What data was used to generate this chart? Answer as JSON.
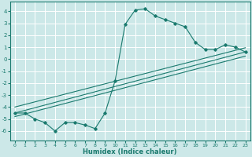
{
  "title": "",
  "xlabel": "Humidex (Indice chaleur)",
  "bg_color": "#cce8e8",
  "grid_color": "#ffffff",
  "line_color": "#1a7a6e",
  "xlim": [
    -0.5,
    23.5
  ],
  "ylim": [
    -6.8,
    4.8
  ],
  "xticks": [
    0,
    1,
    2,
    3,
    4,
    5,
    6,
    7,
    8,
    9,
    10,
    11,
    12,
    13,
    14,
    15,
    16,
    17,
    18,
    19,
    20,
    21,
    22,
    23
  ],
  "yticks": [
    -6,
    -5,
    -4,
    -3,
    -2,
    -1,
    0,
    1,
    2,
    3,
    4
  ],
  "series1_x": [
    0,
    1,
    2,
    3,
    4,
    5,
    6,
    7,
    8,
    9,
    10,
    11,
    12,
    13,
    14,
    15,
    16,
    17,
    18,
    19,
    20,
    21,
    22,
    23
  ],
  "series1_y": [
    -4.5,
    -4.5,
    -5.0,
    -5.3,
    -6.0,
    -5.3,
    -5.3,
    -5.5,
    -5.8,
    -4.5,
    -1.8,
    2.9,
    4.1,
    4.2,
    3.6,
    3.3,
    3.0,
    2.7,
    1.4,
    0.8,
    0.8,
    1.2,
    1.0,
    0.6
  ],
  "series2_x": [
    0,
    23
  ],
  "series2_y": [
    -4.5,
    0.6
  ],
  "series3_x": [
    0,
    23
  ],
  "series3_y": [
    -4.0,
    0.95
  ],
  "series4_x": [
    0,
    23
  ],
  "series4_y": [
    -4.8,
    0.25
  ]
}
